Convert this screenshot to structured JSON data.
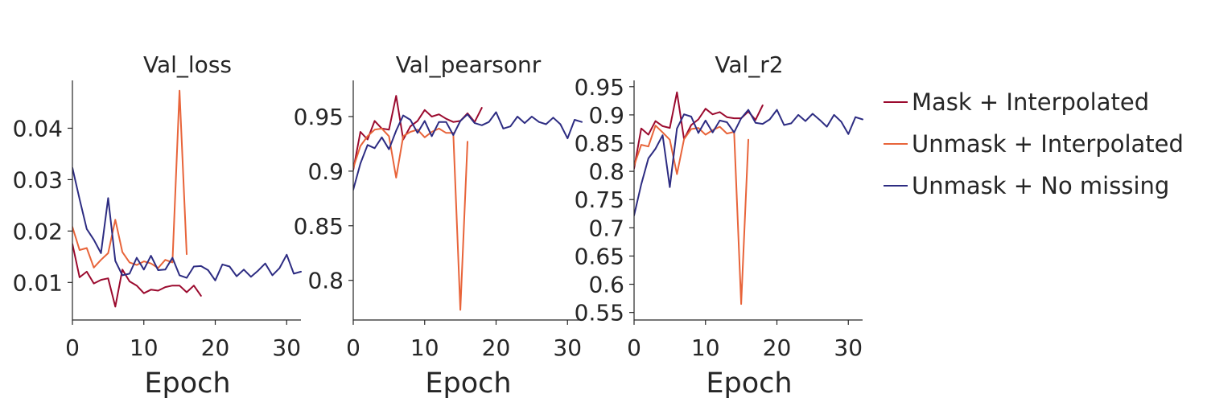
{
  "chart_data": {
    "type": "line",
    "legend": {
      "placement": "right",
      "entries": [
        {
          "label": "Mask + Interpolated",
          "color": "#9b0a2e"
        },
        {
          "label": "Unmask + Interpolated",
          "color": "#e8643a"
        },
        {
          "label": "Unmask + No missing",
          "color": "#2d2c82"
        }
      ]
    },
    "panels": [
      {
        "title": "Val_loss",
        "xlabel": "Epoch",
        "ylabel": "",
        "xlim": [
          0,
          32
        ],
        "ylim": [
          0.0027,
          0.0493
        ],
        "xticks": [
          0,
          10,
          20,
          30
        ],
        "xtick_labels": [
          "0",
          "10",
          "20",
          "30"
        ],
        "yticks": [
          0.01,
          0.02,
          0.03,
          0.04
        ],
        "ytick_labels": [
          "0.01",
          "0.02",
          "0.03",
          "0.04"
        ],
        "grid": false,
        "series": [
          {
            "name": "Mask + Interpolated",
            "color": "#9b0a2e",
            "x": [
              0,
              1,
              2,
              3,
              4,
              5,
              6,
              7,
              8,
              9,
              10,
              11,
              12,
              13,
              14,
              15,
              16,
              17,
              18
            ],
            "y": [
              0.0175,
              0.011,
              0.0121,
              0.0098,
              0.0105,
              0.0108,
              0.0053,
              0.0125,
              0.0102,
              0.0094,
              0.0079,
              0.0086,
              0.0084,
              0.0091,
              0.0094,
              0.0094,
              0.0081,
              0.0094,
              0.0074
            ]
          },
          {
            "name": "Unmask + Interpolated",
            "color": "#e8643a",
            "x": [
              0,
              1,
              2,
              3,
              4,
              5,
              6,
              7,
              8,
              9,
              10,
              11,
              12,
              13,
              14,
              15,
              16
            ],
            "y": [
              0.0208,
              0.0163,
              0.0167,
              0.0129,
              0.0144,
              0.0157,
              0.0222,
              0.0159,
              0.0139,
              0.0134,
              0.0141,
              0.0137,
              0.0128,
              0.0144,
              0.0139,
              0.0473,
              0.0155
            ]
          },
          {
            "name": "Unmask + No missing",
            "color": "#2d2c82",
            "x": [
              0,
              1,
              2,
              3,
              4,
              5,
              6,
              7,
              8,
              9,
              10,
              11,
              12,
              13,
              14,
              15,
              16,
              17,
              18,
              19,
              20,
              21,
              22,
              23,
              24,
              25,
              26,
              27,
              28,
              29,
              30,
              31,
              32
            ],
            "y": [
              0.0323,
              0.0262,
              0.0204,
              0.0183,
              0.0157,
              0.0264,
              0.0142,
              0.0114,
              0.0117,
              0.0148,
              0.0125,
              0.0152,
              0.0124,
              0.0125,
              0.0148,
              0.0114,
              0.0109,
              0.0131,
              0.0132,
              0.0124,
              0.0104,
              0.0135,
              0.0131,
              0.0112,
              0.0125,
              0.0111,
              0.0123,
              0.0137,
              0.0114,
              0.0128,
              0.0154,
              0.0117,
              0.0121
            ]
          }
        ]
      },
      {
        "title": "Val_pearsonr",
        "xlabel": "Epoch",
        "ylabel": "",
        "xlim": [
          0,
          32
        ],
        "ylim": [
          0.7637,
          0.9831
        ],
        "xticks": [
          0,
          10,
          20,
          30
        ],
        "xtick_labels": [
          "0",
          "10",
          "20",
          "30"
        ],
        "yticks": [
          0.8,
          0.85,
          0.9,
          0.95
        ],
        "ytick_labels": [
          "0.8",
          "0.85",
          "0.9",
          "0.95"
        ],
        "grid": false,
        "series": [
          {
            "name": "Mask + Interpolated",
            "color": "#9b0a2e",
            "x": [
              0,
              1,
              2,
              3,
              4,
              5,
              6,
              7,
              8,
              9,
              10,
              11,
              12,
              13,
              14,
              15,
              16,
              17,
              18
            ],
            "y": [
              0.901,
              0.936,
              0.929,
              0.946,
              0.939,
              0.938,
              0.969,
              0.929,
              0.941,
              0.946,
              0.956,
              0.95,
              0.952,
              0.948,
              0.945,
              0.946,
              0.953,
              0.945,
              0.958
            ]
          },
          {
            "name": "Unmask + Interpolated",
            "color": "#e8643a",
            "x": [
              0,
              1,
              2,
              3,
              4,
              5,
              6,
              7,
              8,
              9,
              10,
              11,
              12,
              13,
              14,
              15,
              16
            ],
            "y": [
              0.903,
              0.923,
              0.932,
              0.938,
              0.939,
              0.932,
              0.894,
              0.932,
              0.936,
              0.938,
              0.931,
              0.936,
              0.939,
              0.935,
              0.935,
              0.773,
              0.927
            ]
          },
          {
            "name": "Unmask + No missing",
            "color": "#2d2c82",
            "x": [
              0,
              1,
              2,
              3,
              4,
              5,
              6,
              7,
              8,
              9,
              10,
              11,
              12,
              13,
              14,
              15,
              16,
              17,
              18,
              19,
              20,
              21,
              22,
              23,
              24,
              25,
              26,
              27,
              28,
              29,
              30,
              31,
              32
            ],
            "y": [
              0.883,
              0.907,
              0.924,
              0.921,
              0.931,
              0.92,
              0.937,
              0.951,
              0.947,
              0.935,
              0.946,
              0.932,
              0.945,
              0.945,
              0.933,
              0.946,
              0.952,
              0.944,
              0.942,
              0.945,
              0.954,
              0.939,
              0.941,
              0.95,
              0.944,
              0.95,
              0.945,
              0.943,
              0.949,
              0.943,
              0.93,
              0.947,
              0.945
            ]
          }
        ]
      },
      {
        "title": "Val_r2",
        "xlabel": "Epoch",
        "ylabel": "",
        "xlim": [
          0,
          32
        ],
        "ylim": [
          0.5367,
          0.9611
        ],
        "xticks": [
          0,
          10,
          20,
          30
        ],
        "xtick_labels": [
          "0",
          "10",
          "20",
          "30"
        ],
        "yticks": [
          0.55,
          0.6,
          0.65,
          0.7,
          0.75,
          0.8,
          0.85,
          0.9,
          0.95
        ],
        "ytick_labels": [
          "0.55",
          "0.6",
          "0.65",
          "0.7",
          "0.75",
          "0.8",
          "0.85",
          "0.9",
          "0.95"
        ],
        "grid": false,
        "series": [
          {
            "name": "Mask + Interpolated",
            "color": "#9b0a2e",
            "x": [
              0,
              1,
              2,
              3,
              4,
              5,
              6,
              7,
              8,
              9,
              10,
              11,
              12,
              13,
              14,
              15,
              16,
              17,
              18
            ],
            "y": [
              0.805,
              0.876,
              0.865,
              0.889,
              0.88,
              0.877,
              0.94,
              0.857,
              0.882,
              0.892,
              0.911,
              0.901,
              0.905,
              0.896,
              0.894,
              0.894,
              0.906,
              0.891,
              0.917
            ]
          },
          {
            "name": "Unmask + Interpolated",
            "color": "#e8643a",
            "x": [
              0,
              1,
              2,
              3,
              4,
              5,
              6,
              7,
              8,
              9,
              10,
              11,
              12,
              13,
              14,
              15,
              16
            ],
            "y": [
              0.81,
              0.847,
              0.844,
              0.881,
              0.869,
              0.856,
              0.795,
              0.857,
              0.875,
              0.877,
              0.865,
              0.873,
              0.879,
              0.867,
              0.87,
              0.565,
              0.856
            ]
          },
          {
            "name": "Unmask + No missing",
            "color": "#2d2c82",
            "x": [
              0,
              1,
              2,
              3,
              4,
              5,
              6,
              7,
              8,
              9,
              10,
              11,
              12,
              13,
              14,
              15,
              16,
              17,
              18,
              19,
              20,
              21,
              22,
              23,
              24,
              25,
              26,
              27,
              28,
              29,
              30,
              31,
              32
            ],
            "y": [
              0.722,
              0.777,
              0.823,
              0.84,
              0.864,
              0.772,
              0.876,
              0.901,
              0.897,
              0.868,
              0.89,
              0.869,
              0.89,
              0.887,
              0.869,
              0.894,
              0.909,
              0.886,
              0.884,
              0.892,
              0.909,
              0.882,
              0.885,
              0.9,
              0.889,
              0.902,
              0.891,
              0.879,
              0.9,
              0.888,
              0.866,
              0.896,
              0.892
            ]
          }
        ]
      }
    ]
  }
}
